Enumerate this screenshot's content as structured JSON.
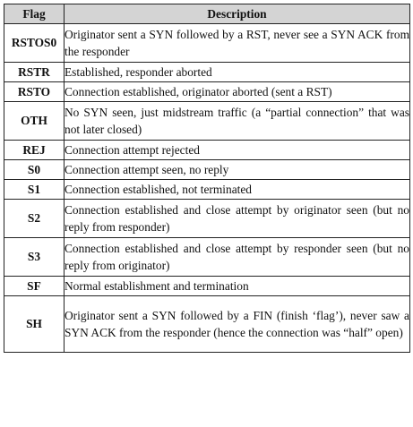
{
  "table": {
    "headers": {
      "flag": "Flag",
      "description": "Description"
    },
    "rows": [
      {
        "flag": "RSTOS0",
        "description": "Originator sent a SYN followed by a RST, never see a SYN ACK from the responder"
      },
      {
        "flag": "RSTR",
        "description": "Established, responder aborted"
      },
      {
        "flag": "RSTO",
        "description": "Connection established, originator aborted (sent a RST)"
      },
      {
        "flag": "OTH",
        "description": "No SYN seen, just midstream traffic (a “partial connection” that was not later closed)"
      },
      {
        "flag": "REJ",
        "description": "Connection attempt rejected"
      },
      {
        "flag": "S0",
        "description": "Connection attempt seen, no reply"
      },
      {
        "flag": "S1",
        "description": "Connection established, not terminated"
      },
      {
        "flag": "S2",
        "description": "Connection established and close attempt by originator seen (but no reply from responder)"
      },
      {
        "flag": "S3",
        "description": "Connection established and close attempt by responder seen (but no reply from originator)"
      },
      {
        "flag": "SF",
        "description": "Normal establishment and termination"
      },
      {
        "flag": "SH",
        "description": "Originator sent a SYN followed by a FIN (finish ‘flag’), never saw a SYN ACK from the responder (hence the connection was “half” open)"
      }
    ]
  }
}
